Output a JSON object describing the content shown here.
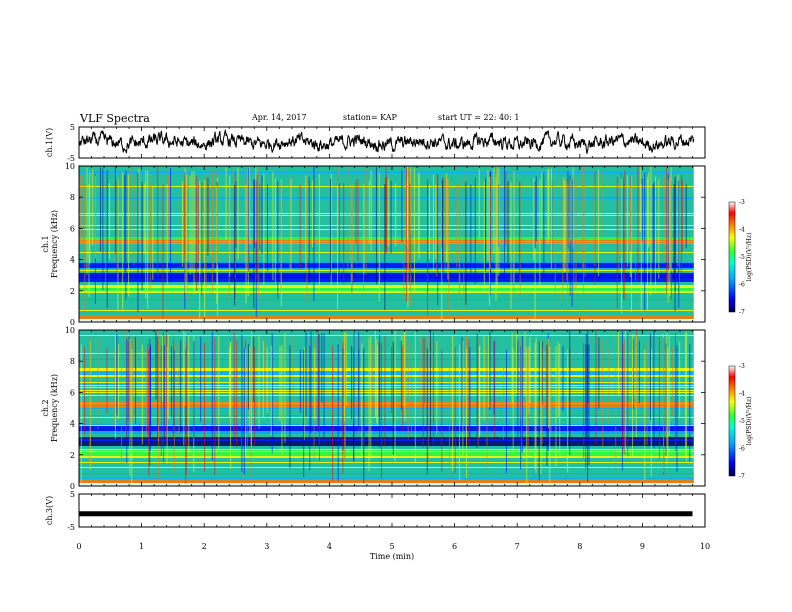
{
  "header": {
    "title": "VLF Spectra",
    "date": "Apr. 14, 2017",
    "station": "station= KAP",
    "start": "start  UT =  22: 40: 1"
  },
  "colors": {
    "spectrogram_base": "#22c0a0",
    "cmap": [
      "#000066",
      "#0000ff",
      "#00aaff",
      "#00ffdd",
      "#33ff33",
      "#ffff00",
      "#ff7700",
      "#ff0000",
      "#ffffff"
    ]
  },
  "chart_data": [
    {
      "type": "line",
      "name": "ch1-waveform",
      "ylabel": "ch.1(V)",
      "ylim": [
        -5,
        5
      ],
      "yticks": [
        "5",
        "-5"
      ],
      "xlim": [
        0,
        10
      ],
      "series": [
        {
          "values_description_free": true,
          "x": [
            0,
            9.8
          ],
          "y_range": [
            -5,
            5
          ]
        }
      ]
    },
    {
      "type": "heatmap",
      "name": "ch1-spectrogram",
      "ylabel": "ch.1\nFrequency (kHz)",
      "ylabel_top": "ch.1",
      "ylabel_bottom": "Frequency (kHz)",
      "ylim": [
        0,
        10
      ],
      "yticks": [
        "0",
        "2",
        "4",
        "6",
        "8",
        "10"
      ],
      "xlim": [
        0,
        10
      ],
      "colorbar": {
        "label": "log(PSD)(V²/Hz)",
        "range": [
          -7,
          -3
        ],
        "ticks": [
          "-3",
          "-4",
          "-5",
          "-6",
          "-7"
        ]
      }
    },
    {
      "type": "heatmap",
      "name": "ch2-spectrogram",
      "ylabel_top": "ch.2",
      "ylabel_bottom": "Frequency (kHz)",
      "ylim": [
        0,
        10
      ],
      "yticks": [
        "0",
        "2",
        "4",
        "6",
        "8",
        "10"
      ],
      "xlim": [
        0,
        10
      ],
      "colorbar": {
        "label": "log(PSD)(V²/Hz)",
        "range": [
          -7,
          -3
        ],
        "ticks": [
          "-3",
          "-4",
          "-5",
          "-6",
          "-7"
        ]
      }
    },
    {
      "type": "line",
      "name": "ch3-waveform",
      "ylabel": "ch.3(V)",
      "ylim": [
        -5,
        5
      ],
      "yticks": [
        "5",
        "-5"
      ],
      "xlim": [
        0,
        10
      ],
      "series": [
        {
          "x": [
            0,
            9.8
          ],
          "y": [
            -1,
            -1
          ]
        }
      ]
    }
  ],
  "xaxis": {
    "label": "Time (min)",
    "ticks": [
      "0",
      "1",
      "2",
      "3",
      "4",
      "5",
      "6",
      "7",
      "8",
      "9",
      "10"
    ]
  }
}
